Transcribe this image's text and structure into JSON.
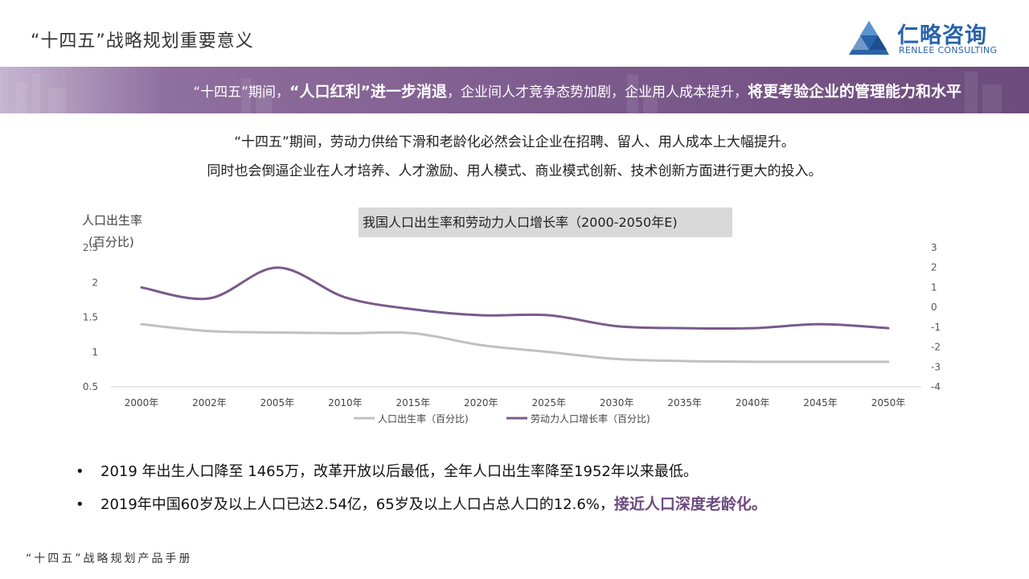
{
  "page_title": "“十四五”战略规划重要意义",
  "logo": {
    "cn": "仁略咨询",
    "en": "RENLEE CONSULTING"
  },
  "banner": {
    "part1": "“十四五”期间，",
    "part2": "“人口红利”进一步消退",
    "part3": "，企业间人才竞争态势加剧，企业用人成本提升，",
    "part4": "将更考验企业的管理能力和水平"
  },
  "intro": {
    "line1": "“十四五”期间，劳动力供给下滑和老龄化必然会让企业在招聘、留人、用人成本上大幅提升。",
    "line2": "同时也会倒逼企业在人才培养、人才激励、用人模式、商业模式创新、技术创新方面进行更大的投入。"
  },
  "chart_data": {
    "type": "line",
    "title": "我国人口出生率和劳动力人口增长率（2000-2050年E)",
    "ylabel_left_line1": "人口出生率",
    "ylabel_left_line2": "(百分比)",
    "categories": [
      "2000年",
      "2002年",
      "2005年",
      "2010年",
      "2015年",
      "2020年",
      "2025年",
      "2030年",
      "2035年",
      "2040年",
      "2045年",
      "2050年"
    ],
    "left_axis": {
      "min": 0.5,
      "max": 2.5,
      "ticks": [
        "0.5",
        "1",
        "1.5",
        "2",
        "2.5"
      ]
    },
    "right_axis": {
      "min": -4,
      "max": 3,
      "ticks": [
        "-4",
        "-3",
        "-2",
        "-1",
        "0",
        "1",
        "2",
        "3"
      ]
    },
    "series": [
      {
        "name": "人口出生率（百分比)",
        "axis": "left",
        "color": "#c0c0c0",
        "values": [
          1.4,
          1.3,
          1.28,
          1.27,
          1.27,
          1.1,
          1.0,
          0.9,
          0.87,
          0.86,
          0.86,
          0.86
        ]
      },
      {
        "name": "劳动力人口增长率（百分比)",
        "axis": "right",
        "color": "#7a5a8a",
        "values": [
          1.0,
          0.45,
          2.0,
          0.5,
          -0.1,
          -0.4,
          -0.4,
          -0.95,
          -1.05,
          -1.05,
          -0.85,
          -1.05
        ]
      }
    ],
    "grid": false,
    "legend_position": "bottom"
  },
  "bullets": [
    {
      "text": "2019 年出生人口降至 1465万，改革开放以后最低，全年人口出生率降至1952年以来最低。",
      "highlight": ""
    },
    {
      "text": "2019年中国60岁及以上人口已达2.54亿，65岁及以上人口占总人口的12.6%，",
      "highlight": "接近人口深度老龄化。"
    }
  ],
  "bullet_symbol": "•",
  "footer": "“十四五”战略规划产品手册"
}
